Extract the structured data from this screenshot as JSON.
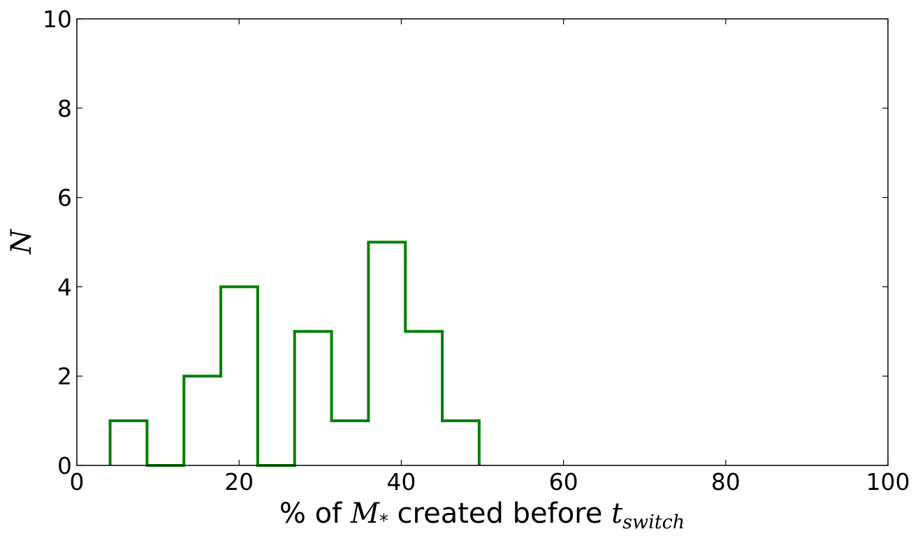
{
  "chart_data": {
    "type": "histogram",
    "title": "",
    "xlabel": {
      "prefix": "% of ",
      "symbol": "M",
      "symbol_sub": "*",
      "middle": " created before ",
      "var": "t",
      "var_sub": "switch"
    },
    "ylabel": "N",
    "xlim": [
      0,
      100
    ],
    "ylim": [
      0,
      10
    ],
    "xticks": [
      0,
      20,
      40,
      60,
      80,
      100
    ],
    "yticks": [
      0,
      2,
      4,
      6,
      8,
      10
    ],
    "bin_edges": [
      4.1,
      8.65,
      13.2,
      17.75,
      22.3,
      26.85,
      31.4,
      35.95,
      40.5,
      45.05,
      49.6
    ],
    "counts": [
      1,
      0,
      2,
      4,
      0,
      3,
      1,
      5,
      3,
      1
    ],
    "color": "#008000",
    "grid": false,
    "legend": "none"
  }
}
